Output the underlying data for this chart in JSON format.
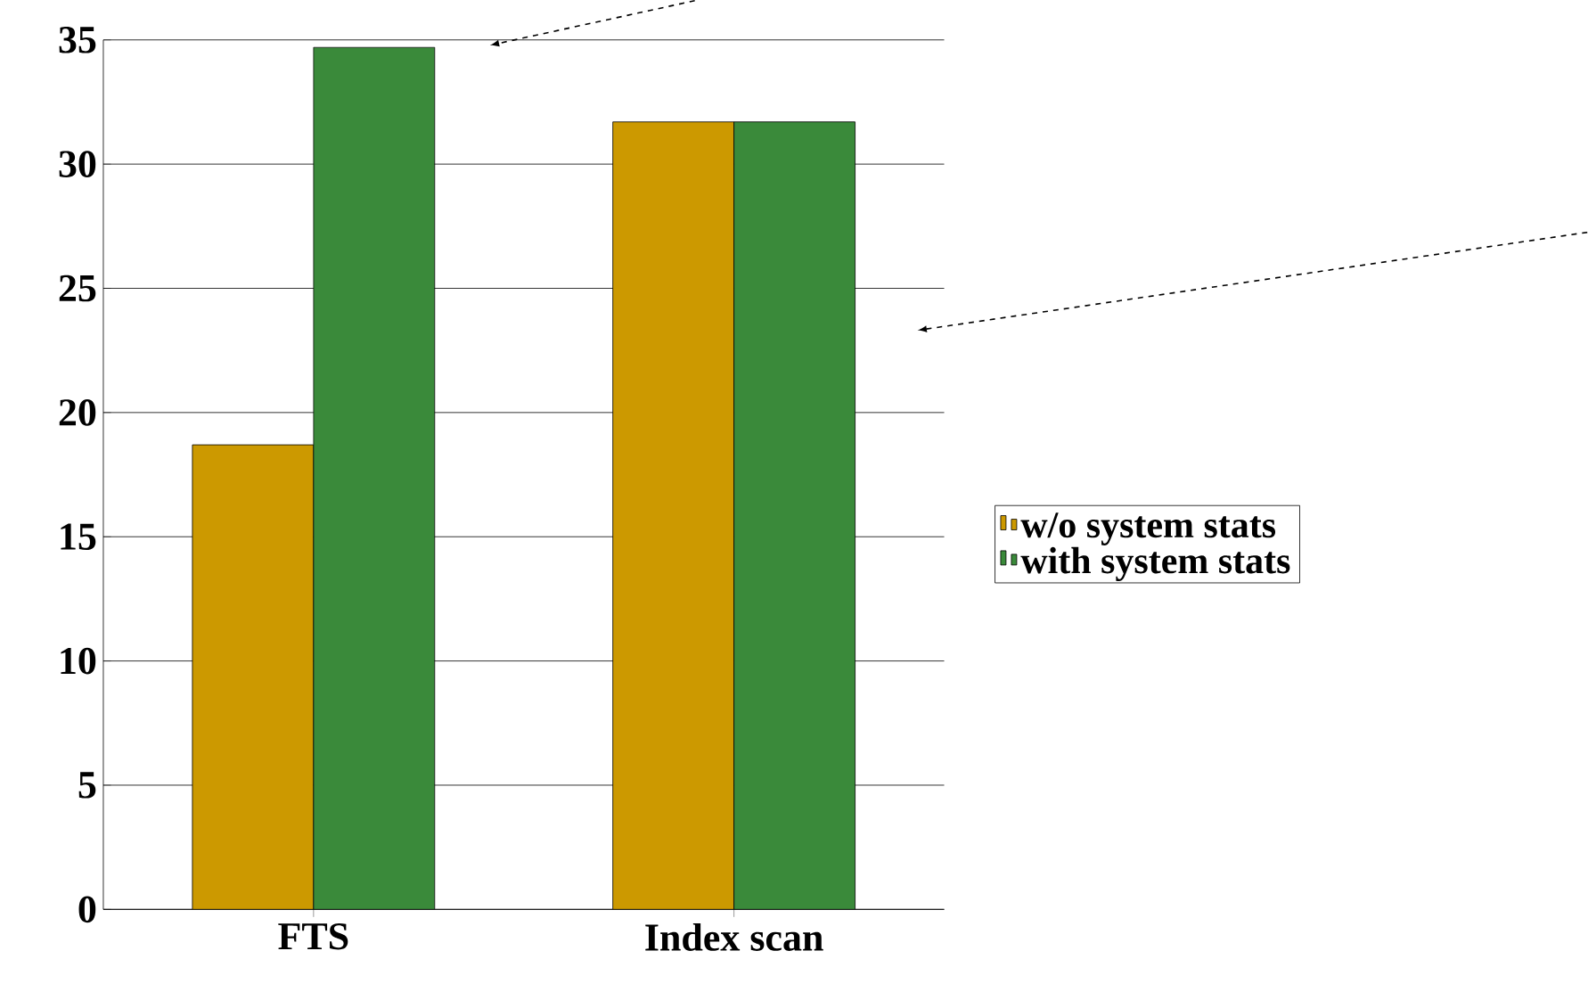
{
  "chart_data": {
    "type": "bar",
    "categories": [
      "FTS",
      "Index scan"
    ],
    "series": [
      {
        "name": "w/o system stats",
        "color": "#cc9900",
        "values": [
          18.7,
          31.7
        ]
      },
      {
        "name": "with system stats",
        "color": "#3a8a3a",
        "values": [
          34.7,
          31.7
        ]
      }
    ],
    "ylim": [
      0,
      35
    ],
    "yticks": [
      0,
      5,
      10,
      15,
      20,
      25,
      30,
      35
    ],
    "grid": "y",
    "legend": "right"
  }
}
